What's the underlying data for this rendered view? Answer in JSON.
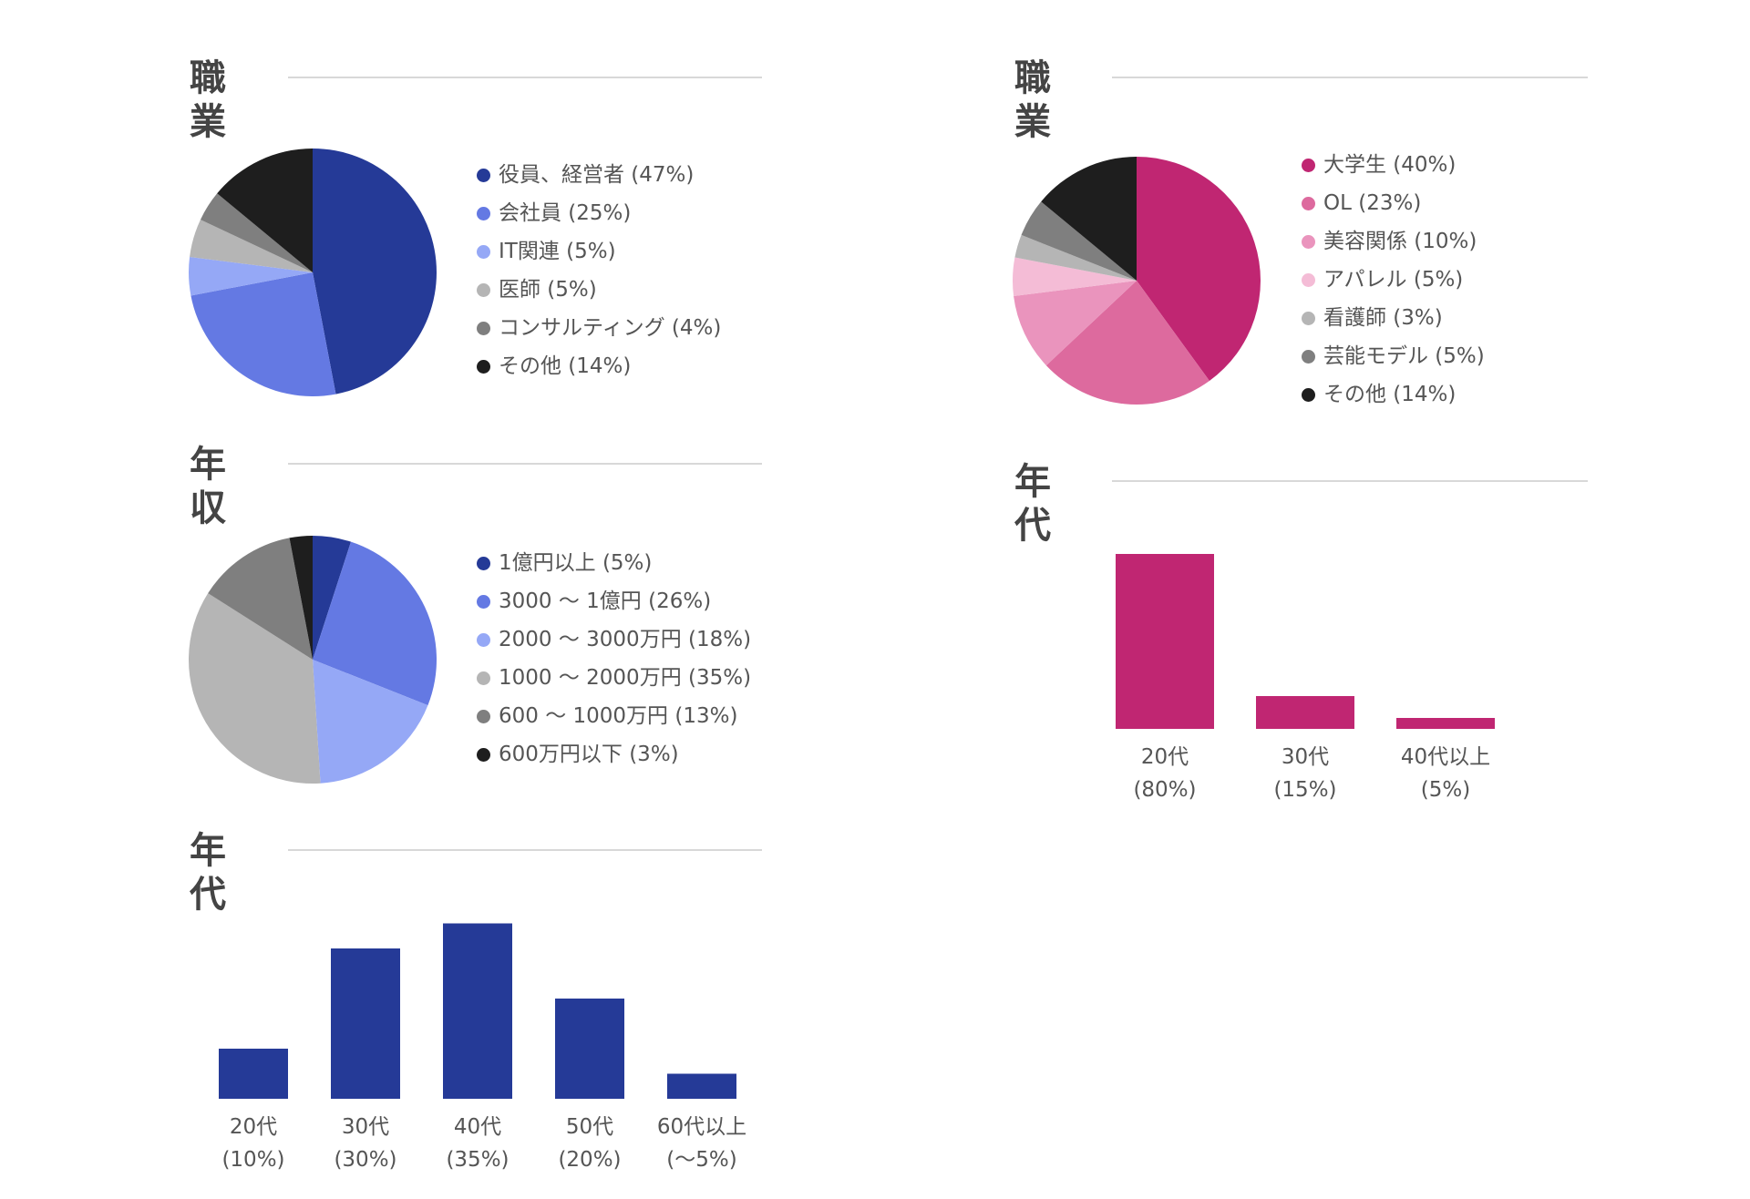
{
  "chart_data": [
    {
      "type": "pie",
      "title": "職業",
      "categories": [
        "役員、経営者 (47%)",
        "会社員 (25%)",
        "IT関連 (5%)",
        "医師 (5%)",
        "コンサルティング (4%)",
        "その他 (14%)"
      ],
      "values": [
        47,
        25,
        5,
        5,
        4,
        14
      ],
      "colors": [
        "#253a97",
        "#6479e3",
        "#95a8f6",
        "#b5b5b5",
        "#7f7f7f",
        "#1e1e1e"
      ],
      "legend_position": "right"
    },
    {
      "type": "pie",
      "title": "年収",
      "categories": [
        "1億円以上 (5%)",
        "3000 〜 1億円 (26%)",
        "2000 〜 3000万円 (18%)",
        "1000 〜 2000万円 (35%)",
        "600 〜 1000万円 (13%)",
        "600万円以下 (3%)"
      ],
      "values": [
        5,
        26,
        18,
        35,
        13,
        3
      ],
      "colors": [
        "#253a97",
        "#6479e3",
        "#95a8f6",
        "#b5b5b5",
        "#7f7f7f",
        "#1e1e1e"
      ],
      "legend_position": "right"
    },
    {
      "type": "bar",
      "title": "年代",
      "categories": [
        "20代\n(10%)",
        "30代\n(30%)",
        "40代\n(35%)",
        "50代\n(20%)",
        "60代以上\n(〜5%)"
      ],
      "values": [
        10,
        30,
        35,
        20,
        5
      ],
      "color": "#253a97",
      "grid": false
    },
    {
      "type": "pie",
      "title": "職業",
      "categories": [
        "大学生 (40%)",
        "OL (23%)",
        "美容関係 (10%)",
        "アパレル (5%)",
        "看護師 (3%)",
        "芸能モデル (5%)",
        "その他 (14%)"
      ],
      "values": [
        40,
        23,
        10,
        5,
        3,
        5,
        14
      ],
      "colors": [
        "#c02672",
        "#dd6a9e",
        "#ea94bd",
        "#f4bcd6",
        "#b5b5b5",
        "#7f7f7f",
        "#1e1e1e"
      ],
      "legend_position": "right"
    },
    {
      "type": "bar",
      "title": "年代",
      "categories": [
        "20代\n(80%)",
        "30代\n(15%)",
        "40代以上\n(5%)"
      ],
      "values": [
        80,
        15,
        5
      ],
      "color": "#c02672",
      "grid": false
    }
  ]
}
